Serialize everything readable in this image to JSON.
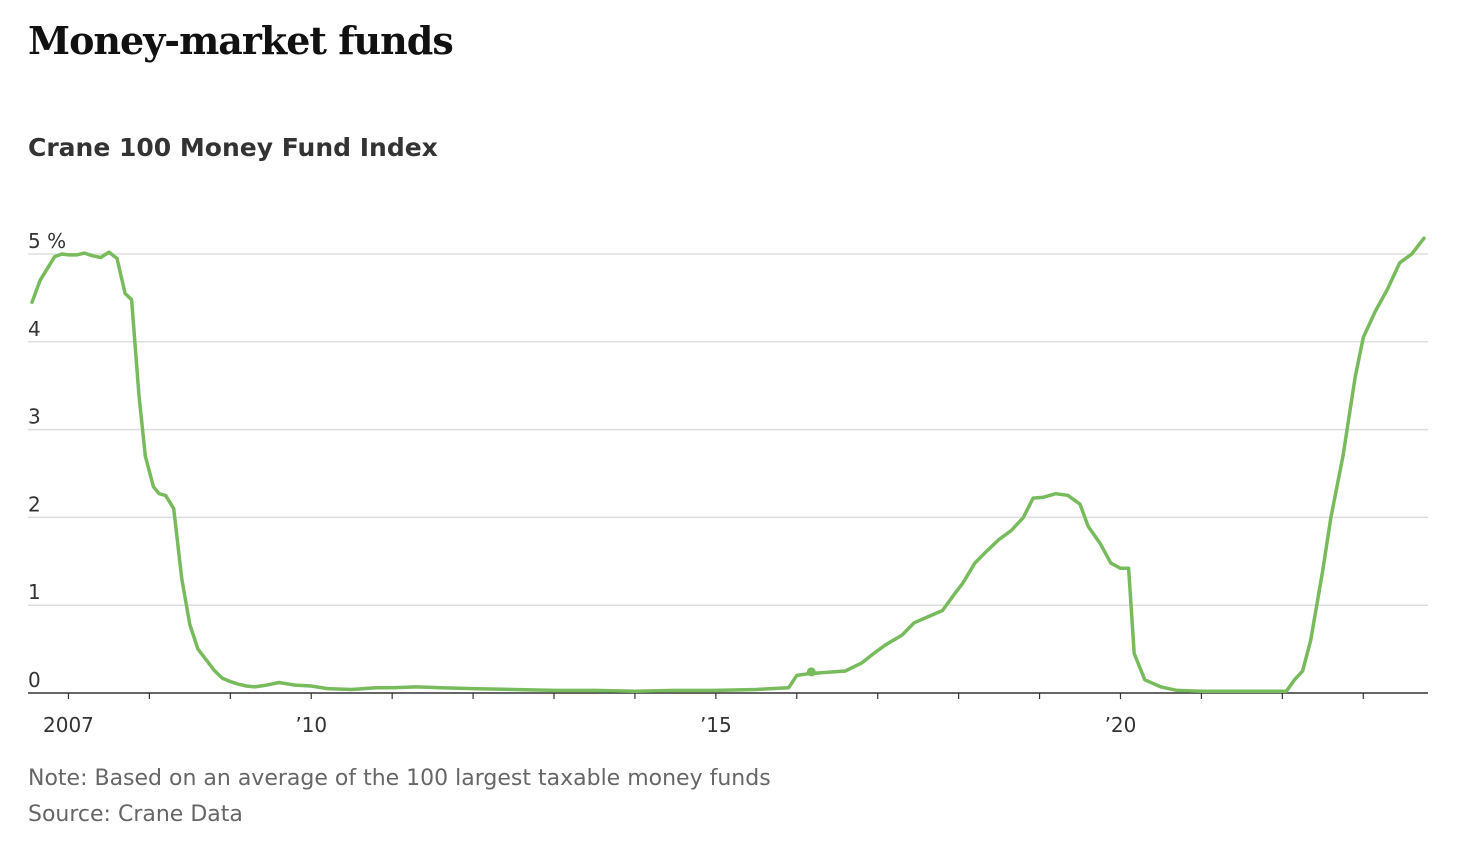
{
  "headline": "Money-market funds",
  "footer": {
    "note": "Note: Based on an average of the 100 largest taxable money funds",
    "source": "Source: Crane Data"
  },
  "chart_data": {
    "type": "line",
    "title": "Crane 100 Money Fund Index",
    "xlabel": "",
    "ylabel": "",
    "xlim": [
      2006.5,
      2023.8
    ],
    "ylim": [
      0,
      5
    ],
    "y_ticks": [
      {
        "value": 0,
        "label": "0"
      },
      {
        "value": 1,
        "label": "1"
      },
      {
        "value": 2,
        "label": "2"
      },
      {
        "value": 3,
        "label": "3"
      },
      {
        "value": 4,
        "label": "4"
      },
      {
        "value": 5,
        "label": "5 %"
      }
    ],
    "x_labels": [
      {
        "value": 2007.0,
        "label": "2007"
      },
      {
        "value": 2010.0,
        "label": "’10"
      },
      {
        "value": 2015.0,
        "label": "’15"
      },
      {
        "value": 2020.0,
        "label": "’20"
      }
    ],
    "x_minor_ticks": [
      2007,
      2008,
      2009,
      2010,
      2011,
      2012,
      2013,
      2014,
      2015,
      2016,
      2017,
      2018,
      2019,
      2020,
      2021,
      2022,
      2023
    ],
    "colors": {
      "line": "#78bb5c",
      "grid": "#dddddd",
      "axis": "#333333"
    },
    "series": [
      {
        "name": "Crane 100 Money Fund Index",
        "x": [
          2006.55,
          2006.65,
          2006.75,
          2006.83,
          2006.92,
          2007.0,
          2007.1,
          2007.2,
          2007.3,
          2007.4,
          2007.5,
          2007.6,
          2007.7,
          2007.78,
          2007.87,
          2007.95,
          2008.05,
          2008.12,
          2008.2,
          2008.3,
          2008.4,
          2008.5,
          2008.6,
          2008.7,
          2008.8,
          2008.9,
          2009.0,
          2009.1,
          2009.2,
          2009.3,
          2009.45,
          2009.6,
          2009.8,
          2010.0,
          2010.2,
          2010.5,
          2010.8,
          2011.0,
          2011.3,
          2011.6,
          2012.0,
          2012.5,
          2013.0,
          2013.5,
          2014.0,
          2014.5,
          2015.0,
          2015.5,
          2015.9,
          2016.0,
          2016.15,
          2016.3,
          2016.45,
          2016.6,
          2016.8,
          2016.95,
          2017.1,
          2017.3,
          2017.45,
          2017.6,
          2017.8,
          2017.95,
          2018.05,
          2018.2,
          2018.35,
          2018.5,
          2018.65,
          2018.8,
          2018.92,
          2019.05,
          2019.2,
          2019.35,
          2019.5,
          2019.6,
          2019.75,
          2019.88,
          2020.0,
          2020.1,
          2020.17,
          2020.3,
          2020.5,
          2020.7,
          2021.0,
          2021.5,
          2021.85,
          2022.05,
          2022.15,
          2022.25,
          2022.35,
          2022.5,
          2022.6,
          2022.75,
          2022.9,
          2023.0,
          2023.15,
          2023.3,
          2023.45,
          2023.6,
          2023.75
        ],
        "y": [
          4.45,
          4.7,
          4.85,
          4.97,
          5.0,
          4.99,
          4.99,
          5.01,
          4.98,
          4.96,
          5.02,
          4.95,
          4.55,
          4.48,
          3.4,
          2.7,
          2.35,
          2.27,
          2.25,
          2.1,
          1.3,
          0.78,
          0.5,
          0.38,
          0.26,
          0.17,
          0.13,
          0.1,
          0.08,
          0.07,
          0.09,
          0.12,
          0.09,
          0.08,
          0.05,
          0.04,
          0.06,
          0.06,
          0.07,
          0.06,
          0.05,
          0.04,
          0.03,
          0.03,
          0.02,
          0.03,
          0.03,
          0.04,
          0.06,
          0.2,
          0.22,
          0.23,
          0.24,
          0.25,
          0.34,
          0.45,
          0.55,
          0.66,
          0.8,
          0.86,
          0.94,
          1.13,
          1.25,
          1.48,
          1.62,
          1.75,
          1.85,
          2.0,
          2.22,
          2.23,
          2.27,
          2.25,
          2.15,
          1.9,
          1.7,
          1.48,
          1.42,
          1.42,
          0.45,
          0.15,
          0.07,
          0.03,
          0.02,
          0.02,
          0.02,
          0.02,
          0.15,
          0.25,
          0.6,
          1.4,
          2.0,
          2.7,
          3.6,
          4.05,
          4.35,
          4.6,
          4.9,
          5.0,
          5.18
        ]
      }
    ],
    "annotations": [
      {
        "x": 2016.18,
        "y": 0.24,
        "marker": "dot"
      }
    ]
  }
}
